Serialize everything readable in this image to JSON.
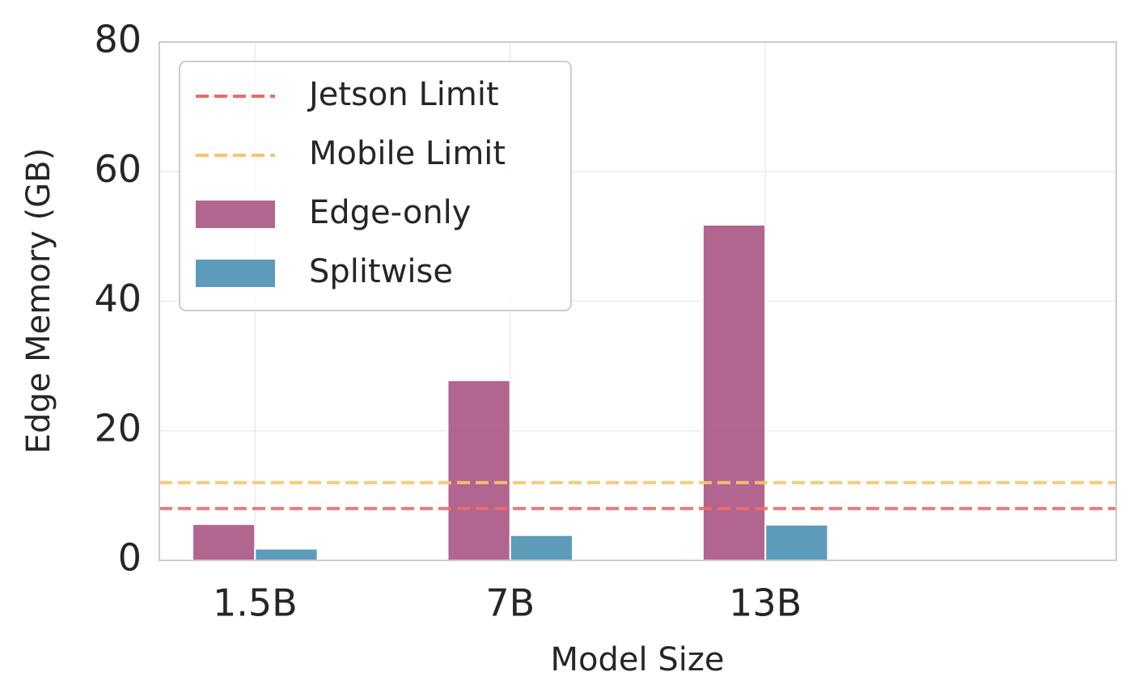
{
  "chart_data": {
    "type": "bar",
    "xlabel": "Model Size",
    "ylabel": "Edge Memory (GB)",
    "categories": [
      "1.5B",
      "7B",
      "13B"
    ],
    "series": [
      {
        "name": "Edge-only",
        "color": "#a34a7b",
        "values": [
          5.6,
          27.8,
          51.8
        ]
      },
      {
        "name": "Splitwise",
        "color": "#3f8bae",
        "values": [
          1.8,
          3.9,
          5.5
        ]
      }
    ],
    "reference_lines": [
      {
        "name": "Jetson Limit",
        "color": "#f06a6a",
        "value": 8
      },
      {
        "name": "Mobile Limit",
        "color": "#f7c46c",
        "value": 12
      }
    ],
    "ylim": [
      0,
      80
    ],
    "yticks": [
      0,
      20,
      40,
      60,
      80
    ],
    "grid": true,
    "legend": "upper left"
  }
}
